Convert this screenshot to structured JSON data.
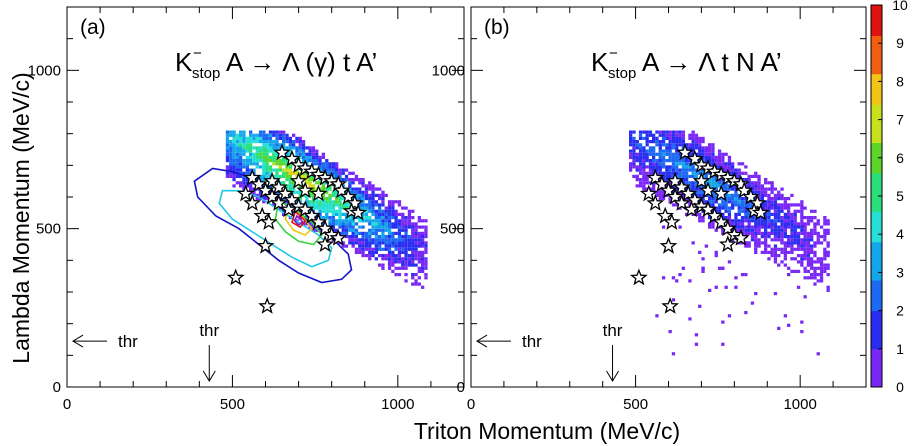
{
  "chart_data": {
    "type": "heatmap",
    "x_axis": {
      "label": "Triton Momentum (MeV/c)",
      "range": [
        0,
        1200
      ],
      "ticks": [
        0,
        500,
        1000
      ]
    },
    "y_axis": {
      "label": "Lambda Momentum (MeV/c)",
      "range": [
        0,
        1200
      ],
      "ticks": [
        0,
        500,
        1000
      ]
    },
    "colorbar": {
      "range": [
        0,
        10
      ],
      "ticks": [
        0,
        1,
        2,
        3,
        4,
        5,
        6,
        7,
        8,
        9,
        10
      ],
      "colors": [
        "#7a28f5",
        "#2a2ef0",
        "#1c69f2",
        "#14a6ea",
        "#26e0d8",
        "#2be07c",
        "#5cd62a",
        "#c8e01e",
        "#f2c414",
        "#f25e10",
        "#e01212"
      ]
    },
    "threshold": {
      "label": "thr",
      "x": 430,
      "y": 145
    },
    "panels": [
      {
        "id": "a",
        "tag": "(a)",
        "title": {
          "k": "K",
          "sup": "−",
          "sub": "stop",
          "rest": " A → Λ (γ) t A’"
        },
        "band": {
          "peak_density": 7.5,
          "extent": "triton 510–1080, lambda 220–800"
        },
        "contours": [
          {
            "level": 1,
            "color": "#1414c8",
            "points": [
              [
                385,
                650
              ],
              [
                440,
                690
              ],
              [
                500,
                680
              ],
              [
                560,
                660
              ],
              [
                620,
                610
              ],
              [
                680,
                560
              ],
              [
                740,
                520
              ],
              [
                800,
                470
              ],
              [
                850,
                420
              ],
              [
                860,
                370
              ],
              [
                830,
                340
              ],
              [
                770,
                330
              ],
              [
                700,
                360
              ],
              [
                640,
                400
              ],
              [
                580,
                450
              ],
              [
                520,
                500
              ],
              [
                450,
                540
              ],
              [
                395,
                600
              ]
            ]
          },
          {
            "level": 3,
            "color": "#20c8e6",
            "points": [
              [
                470,
                620
              ],
              [
                520,
                620
              ],
              [
                580,
                600
              ],
              [
                640,
                560
              ],
              [
                700,
                520
              ],
              [
                760,
                480
              ],
              [
                800,
                440
              ],
              [
                790,
                400
              ],
              [
                740,
                380
              ],
              [
                680,
                410
              ],
              [
                620,
                450
              ],
              [
                560,
                490
              ],
              [
                500,
                530
              ],
              [
                460,
                580
              ]
            ]
          },
          {
            "level": 5,
            "color": "#35d240",
            "points": [
              [
                640,
                590
              ],
              [
                690,
                560
              ],
              [
                740,
                520
              ],
              [
                770,
                480
              ],
              [
                745,
                450
              ],
              [
                700,
                460
              ],
              [
                660,
                490
              ],
              [
                630,
                530
              ]
            ]
          },
          {
            "level": 7,
            "color": "#e8c814",
            "points": [
              [
                670,
                570
              ],
              [
                710,
                540
              ],
              [
                740,
                500
              ],
              [
                720,
                480
              ],
              [
                685,
                495
              ],
              [
                660,
                530
              ]
            ]
          },
          {
            "level": 9,
            "color": "#e01212",
            "points": [
              [
                690,
                555
              ],
              [
                720,
                525
              ],
              [
                705,
                505
              ],
              [
                680,
                520
              ]
            ]
          },
          {
            "level": 10,
            "color": "#8a14c8",
            "points": [
              [
                695,
                540
              ],
              [
                712,
                522
              ],
              [
                700,
                512
              ],
              [
                688,
                525
              ]
            ]
          }
        ],
        "events": [
          [
            650,
            740
          ],
          [
            680,
            720
          ],
          [
            700,
            700
          ],
          [
            720,
            690
          ],
          [
            740,
            680
          ],
          [
            760,
            670
          ],
          [
            780,
            660
          ],
          [
            800,
            650
          ],
          [
            820,
            640
          ],
          [
            830,
            620
          ],
          [
            850,
            600
          ],
          [
            870,
            580
          ],
          [
            860,
            555
          ],
          [
            880,
            550
          ],
          [
            620,
            650
          ],
          [
            640,
            630
          ],
          [
            660,
            610
          ],
          [
            680,
            590
          ],
          [
            700,
            570
          ],
          [
            720,
            560
          ],
          [
            740,
            540
          ],
          [
            760,
            520
          ],
          [
            780,
            500
          ],
          [
            800,
            480
          ],
          [
            820,
            470
          ],
          [
            780,
            450
          ],
          [
            560,
            660
          ],
          [
            580,
            640
          ],
          [
            600,
            620
          ],
          [
            620,
            600
          ],
          [
            640,
            580
          ],
          [
            540,
            610
          ],
          [
            560,
            580
          ],
          [
            590,
            540
          ],
          [
            610,
            520
          ],
          [
            670,
            560
          ],
          [
            720,
            620
          ],
          [
            760,
            610
          ],
          [
            700,
            650
          ],
          [
            600,
            445
          ],
          [
            510,
            345
          ],
          [
            605,
            255
          ]
        ]
      },
      {
        "id": "b",
        "tag": "(b)",
        "title": {
          "k": "K",
          "sup": "−",
          "sub": "stop",
          "rest": " A → Λ t N A’"
        },
        "band": {
          "peak_density": 4.0,
          "extent": "triton 560–1050, lambda 180–780"
        },
        "contours": [],
        "events": [
          [
            650,
            740
          ],
          [
            680,
            720
          ],
          [
            700,
            700
          ],
          [
            720,
            690
          ],
          [
            740,
            680
          ],
          [
            760,
            670
          ],
          [
            780,
            660
          ],
          [
            800,
            650
          ],
          [
            820,
            640
          ],
          [
            830,
            620
          ],
          [
            850,
            600
          ],
          [
            870,
            580
          ],
          [
            860,
            555
          ],
          [
            880,
            550
          ],
          [
            620,
            650
          ],
          [
            640,
            630
          ],
          [
            660,
            610
          ],
          [
            680,
            590
          ],
          [
            700,
            570
          ],
          [
            720,
            560
          ],
          [
            740,
            540
          ],
          [
            760,
            520
          ],
          [
            780,
            500
          ],
          [
            800,
            480
          ],
          [
            820,
            470
          ],
          [
            780,
            450
          ],
          [
            560,
            660
          ],
          [
            580,
            640
          ],
          [
            600,
            620
          ],
          [
            620,
            600
          ],
          [
            640,
            580
          ],
          [
            540,
            610
          ],
          [
            560,
            580
          ],
          [
            590,
            540
          ],
          [
            610,
            520
          ],
          [
            670,
            560
          ],
          [
            720,
            620
          ],
          [
            760,
            610
          ],
          [
            700,
            650
          ],
          [
            600,
            445
          ],
          [
            510,
            345
          ],
          [
            605,
            255
          ]
        ]
      }
    ]
  }
}
